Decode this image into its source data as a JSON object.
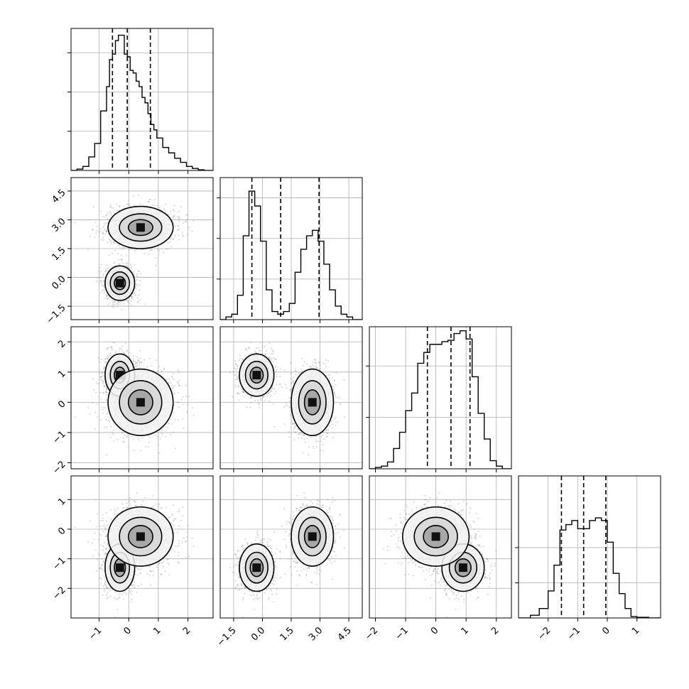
{
  "chart_data": {
    "type": "corner",
    "n_dims": 4,
    "grid": true,
    "colors": {
      "hist": "#000000",
      "scatter": "#8a8a8a",
      "contour": "#000000",
      "grid": "#b0b0b0"
    },
    "ranges": [
      [
        -1.95,
        2.85
      ],
      [
        -2.2,
        5.2
      ],
      [
        -2.2,
        2.5
      ],
      [
        -3.0,
        1.8
      ]
    ],
    "ticks": [
      {
        "values": [
          -1,
          0,
          1,
          2
        ],
        "labels": [
          "−1",
          "0",
          "1",
          "2"
        ]
      },
      {
        "values": [
          -1.5,
          0.0,
          1.5,
          3.0,
          4.5
        ],
        "labels": [
          "−1.5",
          "0.0",
          "1.5",
          "3.0",
          "4.5"
        ]
      },
      {
        "values": [
          -2,
          -1,
          0,
          1,
          2
        ],
        "labels": [
          "−2",
          "−1",
          "0",
          "1",
          "2"
        ]
      },
      {
        "values": [
          -2,
          -1,
          0,
          1
        ],
        "labels": [
          "−2",
          "−1",
          "0",
          "1"
        ]
      }
    ],
    "histograms": [
      {
        "edges": [
          -1.95,
          -1.75,
          -1.55,
          -1.35,
          -1.15,
          -0.95,
          -0.75,
          -0.65,
          -0.55,
          -0.45,
          -0.35,
          -0.25,
          -0.15,
          -0.05,
          0.05,
          0.15,
          0.25,
          0.35,
          0.45,
          0.55,
          0.65,
          0.75,
          0.85,
          0.95,
          1.15,
          1.35,
          1.55,
          1.75,
          1.95,
          2.15,
          2.35,
          2.55,
          2.85
        ],
        "counts": [
          0.0,
          0.01,
          0.03,
          0.1,
          0.2,
          0.44,
          0.62,
          0.82,
          0.86,
          0.96,
          1.0,
          1.0,
          0.86,
          0.84,
          0.74,
          0.72,
          0.66,
          0.62,
          0.54,
          0.5,
          0.42,
          0.34,
          0.3,
          0.24,
          0.17,
          0.13,
          0.09,
          0.06,
          0.03,
          0.015,
          0.005,
          0.0
        ],
        "quantiles": [
          -0.55,
          -0.05,
          0.73
        ],
        "yticks": [
          0.29,
          0.58,
          0.87
        ]
      },
      {
        "edges": [
          -2.2,
          -1.9,
          -1.6,
          -1.3,
          -1.0,
          -0.7,
          -0.4,
          -0.1,
          0.2,
          0.5,
          0.8,
          1.1,
          1.4,
          1.7,
          2.0,
          2.3,
          2.6,
          2.9,
          3.2,
          3.5,
          3.8,
          4.1,
          4.4,
          4.7,
          5.2
        ],
        "counts": [
          0.0,
          0.02,
          0.04,
          0.18,
          0.62,
          0.95,
          0.84,
          0.58,
          0.22,
          0.06,
          0.04,
          0.06,
          0.12,
          0.35,
          0.52,
          0.62,
          0.66,
          0.58,
          0.41,
          0.22,
          0.1,
          0.04,
          0.02,
          0.0
        ],
        "quantiles": [
          -0.55,
          0.95,
          2.95
        ],
        "yticks": [
          0.3,
          0.6,
          0.9
        ]
      },
      {
        "edges": [
          -2.2,
          -2.0,
          -1.8,
          -1.6,
          -1.4,
          -1.2,
          -1.0,
          -0.8,
          -0.6,
          -0.4,
          -0.2,
          0.0,
          0.2,
          0.4,
          0.6,
          0.8,
          1.0,
          1.2,
          1.4,
          1.6,
          1.8,
          2.0,
          2.2,
          2.5
        ],
        "counts": [
          0.0,
          0.01,
          0.02,
          0.05,
          0.15,
          0.27,
          0.43,
          0.56,
          0.78,
          0.86,
          0.92,
          0.92,
          0.94,
          0.95,
          1.0,
          1.02,
          0.96,
          0.68,
          0.41,
          0.22,
          0.06,
          0.02,
          0.0
        ],
        "quantiles": [
          -0.28,
          0.5,
          1.13
        ],
        "yticks": [
          0.38,
          0.76
        ]
      },
      {
        "edges": [
          -3.0,
          -2.6,
          -2.3,
          -2.0,
          -1.8,
          -1.6,
          -1.4,
          -1.2,
          -1.0,
          -0.8,
          -0.6,
          -0.4,
          -0.2,
          0.0,
          0.2,
          0.4,
          0.6,
          0.8,
          1.0,
          1.4,
          1.8
        ],
        "counts": [
          0.0,
          0.02,
          0.07,
          0.2,
          0.39,
          0.65,
          0.69,
          0.72,
          0.66,
          0.66,
          0.72,
          0.74,
          0.72,
          0.56,
          0.33,
          0.18,
          0.07,
          0.01,
          0.005,
          0.0
        ],
        "quantiles": [
          -1.55,
          -0.8,
          -0.05
        ],
        "yticks": [
          0.26,
          0.52
        ]
      }
    ],
    "mixture": {
      "weights": [
        0.45,
        0.55
      ],
      "means": [
        [
          -0.3,
          -0.3,
          0.9,
          -1.3
        ],
        [
          0.4,
          2.6,
          0.0,
          -0.25
        ]
      ],
      "sigmas": [
        [
          0.25,
          0.45,
          0.35,
          0.4
        ],
        [
          0.55,
          0.55,
          0.55,
          0.5
        ]
      ]
    },
    "scatter_samples": 2400
  }
}
